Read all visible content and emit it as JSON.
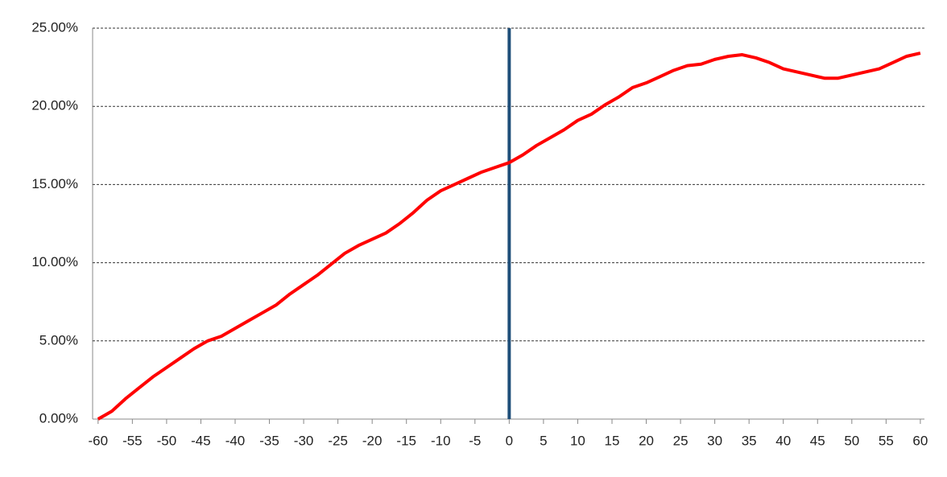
{
  "chart_data": {
    "type": "line",
    "x": [
      -60,
      -58,
      -56,
      -54,
      -52,
      -50,
      -48,
      -46,
      -44,
      -42,
      -40,
      -38,
      -36,
      -34,
      -32,
      -30,
      -28,
      -26,
      -24,
      -22,
      -20,
      -18,
      -16,
      -14,
      -12,
      -10,
      -8,
      -6,
      -4,
      -2,
      0,
      2,
      4,
      6,
      8,
      10,
      12,
      14,
      16,
      18,
      20,
      22,
      24,
      26,
      28,
      30,
      32,
      34,
      36,
      38,
      40,
      42,
      44,
      46,
      48,
      50,
      52,
      54,
      56,
      58,
      60
    ],
    "series": [
      {
        "color": "#ff0000",
        "values": [
          0,
          0.5,
          1.3,
          2.0,
          2.7,
          3.3,
          3.9,
          4.5,
          5.0,
          5.3,
          5.8,
          6.3,
          6.8,
          7.3,
          8.0,
          8.6,
          9.2,
          9.9,
          10.6,
          11.1,
          11.5,
          11.9,
          12.5,
          13.2,
          14.0,
          14.6,
          15.0,
          15.4,
          15.8,
          16.1,
          16.4,
          16.9,
          17.5,
          18.0,
          18.5,
          19.1,
          19.5,
          20.1,
          20.6,
          21.2,
          21.5,
          21.9,
          22.3,
          22.6,
          22.7,
          23.0,
          23.2,
          23.3,
          23.1,
          22.8,
          22.4,
          22.2,
          22.0,
          21.8,
          21.8,
          22.0,
          22.2,
          22.4,
          22.8,
          23.2,
          23.4
        ]
      }
    ],
    "xlim": [
      -60.8,
      60.6
    ],
    "xticks": [
      -60,
      -55,
      -50,
      -45,
      -40,
      -35,
      -30,
      -25,
      -20,
      -15,
      -10,
      -5,
      0,
      5,
      10,
      15,
      20,
      25,
      30,
      35,
      40,
      45,
      50,
      55,
      60
    ],
    "ylim": [
      0,
      25
    ],
    "yticks": [
      {
        "value": 0,
        "label": "0.00%"
      },
      {
        "value": 5,
        "label": "5.00%"
      },
      {
        "value": 10,
        "label": "10.00%"
      },
      {
        "value": 15,
        "label": "15.00%"
      },
      {
        "value": 20,
        "label": "20.00%"
      },
      {
        "value": 25,
        "label": "25.00%"
      }
    ],
    "grid": true,
    "reference_line_x": 0,
    "reference_line_color": "#1f4e79"
  }
}
